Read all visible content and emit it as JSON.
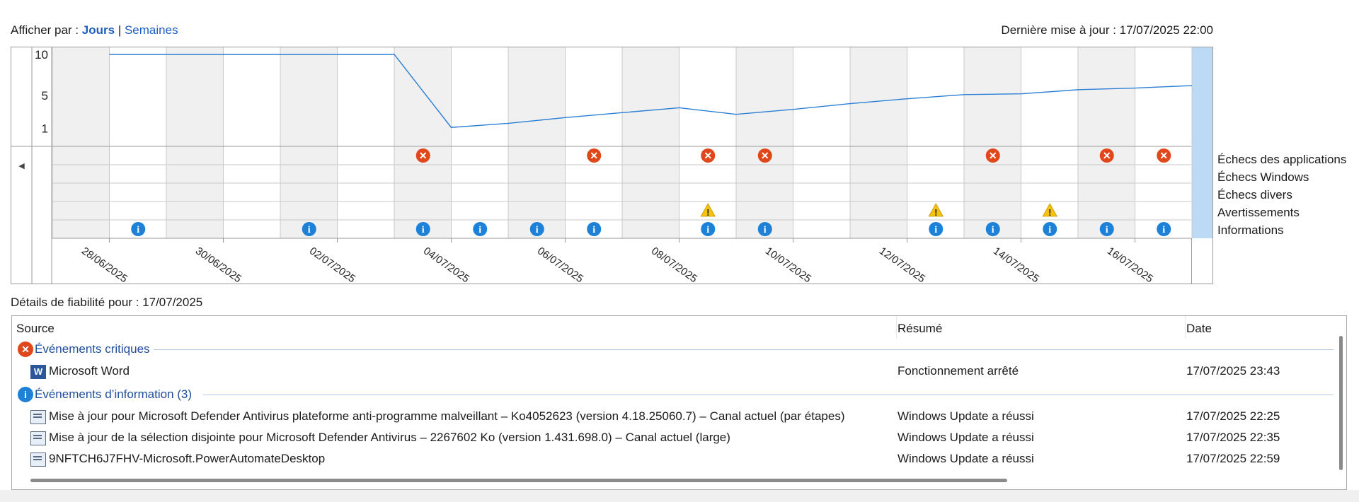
{
  "toolbar": {
    "view_by_label": "Afficher par : ",
    "days_label": "Jours",
    "separator": " | ",
    "weeks_label": "Semaines",
    "last_update": "Dernière mise à jour : 17/07/2025 22:00"
  },
  "chart": {
    "y_ticks": [
      "10",
      "5",
      "1"
    ],
    "x_labels": [
      "28/06/2025",
      "30/06/2025",
      "02/07/2025",
      "04/07/2025",
      "06/07/2025",
      "08/07/2025",
      "10/07/2025",
      "12/07/2025",
      "14/07/2025",
      "16/07/2025"
    ],
    "rows": [
      "Échecs des applications",
      "Échecs Windows",
      "Échecs divers",
      "Avertissements",
      "Informations"
    ],
    "columns_count": 20,
    "selected_date": "17/07/2025",
    "colors": {
      "line": "#2a7fd4",
      "error": "#e0481b",
      "warning": "#f5c211",
      "info": "#1d81d8",
      "selected": "#bcdaf5",
      "shade": "#f0f0f0"
    },
    "stability_index_series": [
      {
        "day": "27/06/2025",
        "value": null
      },
      {
        "day": "28/06/2025",
        "value": 10
      },
      {
        "day": "29/06/2025",
        "value": 10
      },
      {
        "day": "30/06/2025",
        "value": 10
      },
      {
        "day": "01/07/2025",
        "value": 10
      },
      {
        "day": "02/07/2025",
        "value": 10
      },
      {
        "day": "03/07/2025",
        "value": 10
      },
      {
        "day": "04/07/2025",
        "value": 1.1
      },
      {
        "day": "05/07/2025",
        "value": 1.6
      },
      {
        "day": "06/07/2025",
        "value": 2.3
      },
      {
        "day": "07/07/2025",
        "value": 2.9
      },
      {
        "day": "08/07/2025",
        "value": 3.5
      },
      {
        "day": "09/07/2025",
        "value": 2.7
      },
      {
        "day": "10/07/2025",
        "value": 3.3
      },
      {
        "day": "11/07/2025",
        "value": 4.0
      },
      {
        "day": "12/07/2025",
        "value": 4.6
      },
      {
        "day": "13/07/2025",
        "value": 5.1
      },
      {
        "day": "14/07/2025",
        "value": 5.2
      },
      {
        "day": "15/07/2025",
        "value": 5.7
      },
      {
        "day": "16/07/2025",
        "value": 5.9
      },
      {
        "day": "17/07/2025",
        "value": 6.2
      }
    ],
    "events": [
      {
        "col": 7,
        "row": 0,
        "type": "error"
      },
      {
        "col": 10,
        "row": 0,
        "type": "error"
      },
      {
        "col": 12,
        "row": 0,
        "type": "error"
      },
      {
        "col": 13,
        "row": 0,
        "type": "error"
      },
      {
        "col": 17,
        "row": 0,
        "type": "error"
      },
      {
        "col": 19,
        "row": 0,
        "type": "error"
      },
      {
        "col": 20,
        "row": 0,
        "type": "error"
      },
      {
        "col": 12,
        "row": 3,
        "type": "warning"
      },
      {
        "col": 16,
        "row": 3,
        "type": "warning"
      },
      {
        "col": 18,
        "row": 3,
        "type": "warning"
      },
      {
        "col": 2,
        "row": 4,
        "type": "info"
      },
      {
        "col": 5,
        "row": 4,
        "type": "info"
      },
      {
        "col": 7,
        "row": 4,
        "type": "info"
      },
      {
        "col": 8,
        "row": 4,
        "type": "info"
      },
      {
        "col": 9,
        "row": 4,
        "type": "info"
      },
      {
        "col": 10,
        "row": 4,
        "type": "info"
      },
      {
        "col": 12,
        "row": 4,
        "type": "info"
      },
      {
        "col": 13,
        "row": 4,
        "type": "info"
      },
      {
        "col": 16,
        "row": 4,
        "type": "info"
      },
      {
        "col": 17,
        "row": 4,
        "type": "info"
      },
      {
        "col": 18,
        "row": 4,
        "type": "info"
      },
      {
        "col": 19,
        "row": 4,
        "type": "info"
      },
      {
        "col": 20,
        "row": 4,
        "type": "info"
      }
    ]
  },
  "details": {
    "title": "Détails de fiabilité pour : 17/07/2025",
    "columns": {
      "source": "Source",
      "summary": "Résumé",
      "date": "Date"
    },
    "critical_group": "Événements critiques",
    "critical_rows": [
      {
        "source": "Microsoft Word",
        "summary": "Fonctionnement arrêté",
        "date": "17/07/2025 23:43"
      }
    ],
    "info_group": "Événements d’information (3)",
    "info_rows": [
      {
        "source": "Mise à jour pour Microsoft Defender Antivirus plateforme anti-programme malveillant – Ko4052623 (version 4.18.25060.7) – Canal actuel (par étapes)",
        "summary": "Windows Update a réussi",
        "date": "17/07/2025 22:25"
      },
      {
        "source": "Mise à jour de la sélection disjointe pour Microsoft Defender Antivirus – 2267602 Ko (version 1.431.698.0) – Canal actuel (large)",
        "summary": "Windows Update a réussi",
        "date": "17/07/2025 22:35"
      },
      {
        "source": "9NFTCH6J7FHV-Microsoft.PowerAutomateDesktop",
        "summary": "Windows Update a réussi",
        "date": "17/07/2025 22:59"
      }
    ]
  }
}
